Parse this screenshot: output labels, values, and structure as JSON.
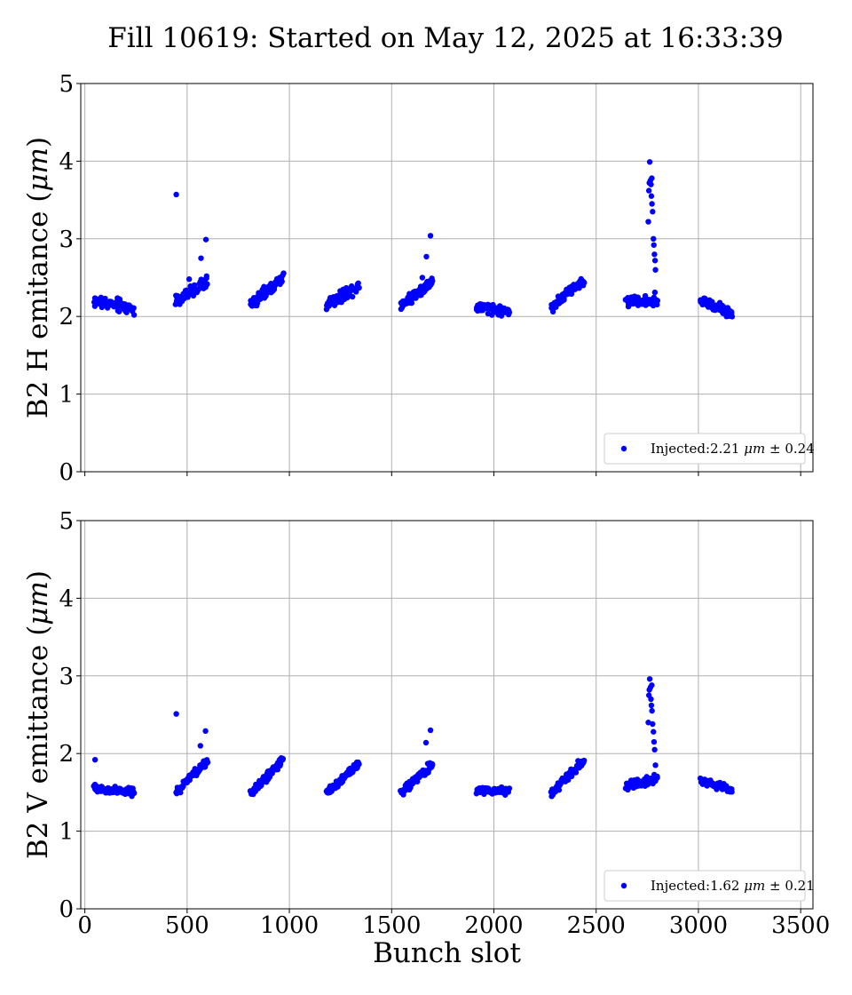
{
  "figure_title": "Fill 10619: Started on May 12, 2025 at 16:33:39",
  "colors": {
    "marker": "#0000ff",
    "grid": "#b0b0b0",
    "axes": "#000000"
  },
  "chart_data": [
    {
      "type": "scatter",
      "ylabel_text": "B2 H emitance (",
      "ylabel_math": "μm",
      "ylabel_tail": ")",
      "xlabel": "",
      "xlim": [
        -20,
        3560
      ],
      "ylim": [
        0,
        5
      ],
      "yticks": [
        0,
        1,
        2,
        3,
        4,
        5
      ],
      "xticks": [
        0,
        500,
        1000,
        1500,
        2000,
        2500,
        3000,
        3500
      ],
      "show_xtick_labels": false,
      "grid": true,
      "legend": {
        "placement": "lower-right",
        "prefix": "Injected:2.21 ",
        "unit": "μm",
        "suffix": " ± 0.24"
      },
      "series": [
        {
          "marker_color": "#0000ff",
          "trains": [
            {
              "start": 45,
              "end": 240,
              "base": 2.2,
              "slope": -0.1,
              "spread": 0.09,
              "n": 72
            },
            {
              "start": 445,
              "end": 600,
              "base": 2.2,
              "slope": 0.25,
              "spread": 0.08,
              "n": 68
            },
            {
              "start": 810,
              "end": 970,
              "base": 2.15,
              "slope": 0.35,
              "spread": 0.08,
              "n": 70
            },
            {
              "start": 1180,
              "end": 1340,
              "base": 2.15,
              "slope": 0.25,
              "spread": 0.08,
              "n": 70
            },
            {
              "start": 1545,
              "end": 1700,
              "base": 2.15,
              "slope": 0.3,
              "spread": 0.08,
              "n": 68
            },
            {
              "start": 1915,
              "end": 2075,
              "base": 2.12,
              "slope": -0.05,
              "spread": 0.07,
              "n": 66
            },
            {
              "start": 2280,
              "end": 2440,
              "base": 2.12,
              "slope": 0.35,
              "spread": 0.07,
              "n": 66
            },
            {
              "start": 2645,
              "end": 2800,
              "base": 2.2,
              "slope": 0.0,
              "spread": 0.07,
              "n": 68
            },
            {
              "start": 3010,
              "end": 3165,
              "base": 2.2,
              "slope": -0.15,
              "spread": 0.07,
              "n": 64
            }
          ],
          "outliers": [
            [
              447,
              3.57
            ],
            [
              568,
              2.75
            ],
            [
              592,
              2.99
            ],
            [
              1670,
              2.77
            ],
            [
              1690,
              3.04
            ],
            [
              510,
              2.48
            ],
            [
              1650,
              2.5
            ],
            [
              2755,
              3.22
            ],
            [
              2758,
              3.62
            ],
            [
              2762,
              3.99
            ],
            [
              2765,
              3.75
            ],
            [
              2768,
              3.7
            ],
            [
              2770,
              3.55
            ],
            [
              2773,
              3.45
            ],
            [
              2776,
              3.35
            ],
            [
              2780,
              3.0
            ],
            [
              2782,
              2.92
            ],
            [
              2785,
              2.8
            ],
            [
              2788,
              2.72
            ],
            [
              2790,
              2.6
            ],
            [
              2760,
              3.72
            ],
            [
              2772,
              3.78
            ],
            [
              2787,
              2.31
            ]
          ]
        }
      ]
    },
    {
      "type": "scatter",
      "ylabel_text": "B2 V emittance (",
      "ylabel_math": "μm",
      "ylabel_tail": ")",
      "xlabel": "Bunch slot",
      "xlim": [
        -20,
        3560
      ],
      "ylim": [
        0,
        5
      ],
      "yticks": [
        0,
        1,
        2,
        3,
        4,
        5
      ],
      "xticks": [
        0,
        500,
        1000,
        1500,
        2000,
        2500,
        3000,
        3500
      ],
      "show_xtick_labels": true,
      "grid": true,
      "legend": {
        "placement": "lower-right",
        "prefix": "Injected:1.62 ",
        "unit": "μm",
        "suffix": " ± 0.21"
      },
      "series": [
        {
          "marker_color": "#0000ff",
          "trains": [
            {
              "start": 45,
              "end": 240,
              "base": 1.55,
              "slope": -0.05,
              "spread": 0.06,
              "n": 72
            },
            {
              "start": 445,
              "end": 600,
              "base": 1.5,
              "slope": 0.4,
              "spread": 0.06,
              "n": 68
            },
            {
              "start": 810,
              "end": 970,
              "base": 1.48,
              "slope": 0.45,
              "spread": 0.06,
              "n": 70
            },
            {
              "start": 1180,
              "end": 1340,
              "base": 1.48,
              "slope": 0.4,
              "spread": 0.06,
              "n": 70
            },
            {
              "start": 1545,
              "end": 1700,
              "base": 1.5,
              "slope": 0.35,
              "spread": 0.06,
              "n": 68
            },
            {
              "start": 1915,
              "end": 2075,
              "base": 1.52,
              "slope": 0.0,
              "spread": 0.05,
              "n": 66
            },
            {
              "start": 2280,
              "end": 2440,
              "base": 1.5,
              "slope": 0.4,
              "spread": 0.06,
              "n": 66
            },
            {
              "start": 2645,
              "end": 2800,
              "base": 1.58,
              "slope": 0.1,
              "spread": 0.06,
              "n": 68
            },
            {
              "start": 3010,
              "end": 3165,
              "base": 1.65,
              "slope": -0.12,
              "spread": 0.05,
              "n": 64
            }
          ],
          "outliers": [
            [
              447,
              2.51
            ],
            [
              565,
              2.1
            ],
            [
              590,
              2.29
            ],
            [
              1668,
              2.14
            ],
            [
              1690,
              2.3
            ],
            [
              50,
              1.92
            ],
            [
              2755,
              2.4
            ],
            [
              2758,
              2.75
            ],
            [
              2762,
              2.96
            ],
            [
              2765,
              2.85
            ],
            [
              2768,
              2.7
            ],
            [
              2770,
              2.62
            ],
            [
              2773,
              2.55
            ],
            [
              2776,
              2.38
            ],
            [
              2780,
              2.28
            ],
            [
              2783,
              2.15
            ],
            [
              2786,
              2.05
            ],
            [
              2760,
              2.82
            ],
            [
              2772,
              2.88
            ],
            [
              2790,
              1.85
            ]
          ]
        }
      ]
    }
  ]
}
